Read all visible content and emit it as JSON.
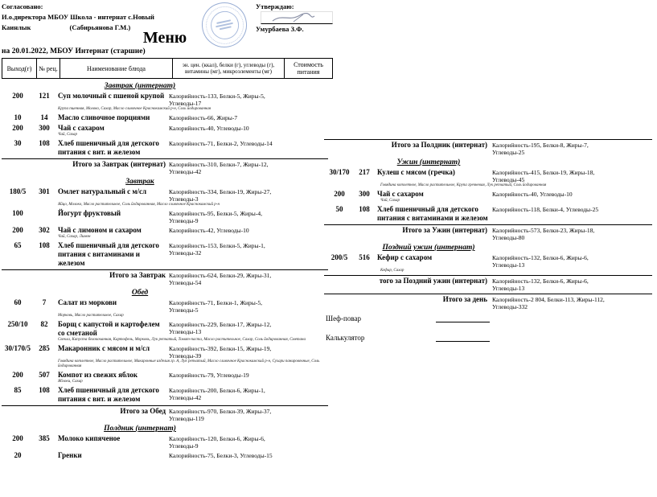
{
  "header": {
    "agreed": {
      "line1": "Согласовано:",
      "line2": "И.о.директора МБОУ Школа - интернат с.Новый",
      "line3a": "Каинлык",
      "line3b": "(Сабирьянова Г.М.)"
    },
    "approved": {
      "label": "Утверждаю:",
      "name": "Умурбаева З.Ф."
    },
    "title": "Меню",
    "subtitle": "на 20.01.2022, МБОУ Интернат (старшие)"
  },
  "colors": {
    "stamp_blue": "#708ec4",
    "ink": "#000000"
  },
  "table_header": {
    "out": "Выход(г)",
    "rec": "№ рец.",
    "name": "Наименование блюда",
    "nutrition": "эн. цен. (ккал), белки (г), углеводы (г), витамины (мг), микроэлементы (мг)",
    "cost": "Стоимость питания"
  },
  "left_column": {
    "sections": [
      {
        "heading": "Завтрак (интернат)",
        "rows": [
          {
            "out": "200",
            "rec": "121",
            "name": "Суп молочный с пшеной крупой",
            "nutrition": "Калорийность-133, Белки-5, Жиры-5, Углеводы-17",
            "ingredients": "Крупа пшенная, Молоко, Сахар, Масло сливочное Краснокамский р-н, Соль йодированная"
          },
          {
            "out": "10",
            "rec": "14",
            "name": "Масло сливочное порциями",
            "nutrition": "Калорийность-66, Жиры-7"
          },
          {
            "out": "200",
            "rec": "300",
            "name": "Чай с сахаром",
            "nutrition": "Калорийность-40, Углеводы-10",
            "ingredients": "Чай, Сахар"
          },
          {
            "out": "30",
            "rec": "108",
            "name": "Хлеб пшеничный для детского питания с вит. и железом",
            "nutrition": "Калорийность-71, Белки-2, Углеводы-14"
          }
        ],
        "total": {
          "label": "Итого за Завтрак (интернат)",
          "nutrition": "Калорийность-310, Белки-7, Жиры-12, Углеводы-42"
        }
      },
      {
        "heading": "Завтрак",
        "rows": [
          {
            "out": "180/5",
            "rec": "301",
            "name": "Омлет натуральный с м/сл",
            "nutrition": "Калорийность-334, Белки-19, Жиры-27, Углеводы-3",
            "ingredients": "Яйцо, Молоко, Масло растительное, Соль йодированная, Масло сливочное Краснокамский р-н"
          },
          {
            "out": "100",
            "rec": "",
            "name": "Йогурт фруктовый",
            "nutrition": "Калорийность-95, Белки-5, Жиры-4, Углеводы-9"
          },
          {
            "out": "200",
            "rec": "302",
            "name": "Чай с лимоном и сахаром",
            "nutrition": "Калорийность-42, Углеводы-10",
            "ingredients": "Чай, Сахар, Лимон"
          },
          {
            "out": "65",
            "rec": "108",
            "name": "Хлеб пшеничный для детского питания с витаминами и железом",
            "nutrition": "Калорийность-153, Белки-5, Жиры-1, Углеводы-32"
          }
        ],
        "total": {
          "label": "Итого за Завтрак",
          "nutrition": "Калорийность-624, Белки-29, Жиры-31, Углеводы-54"
        }
      },
      {
        "heading": "Обед",
        "rows": [
          {
            "out": "60",
            "rec": "7",
            "name": "Салат из моркови",
            "nutrition": "Калорийность-71, Белки-1, Жиры-5, Углеводы-5",
            "ingredients": "Морковь, Масло растительное, Сахар"
          },
          {
            "out": "250/10",
            "rec": "82",
            "name": "Борщ с капустой и картофелем со сметаной",
            "nutrition": "Калорийность-229, Белки-17, Жиры-12, Углеводы-13",
            "ingredients": "Свекла, Капуста белокочанная, Картофель, Морковь, Лук репчатый, Томат-паста, Масло растительное, Сахар, Соль йодированная, Сметана"
          },
          {
            "out": "30/170/5",
            "rec": "285",
            "name": "Макаронник с мясом и м/сл",
            "nutrition": "Калорийность-392, Белки-15, Жиры-19, Углеводы-39",
            "ingredients": "Говядина котлетное, Масло растительное, Макаронные изделия гр. А, Лук репчатый, Масло сливочное Краснокамский р-н, Сухари панировочные, Соль йодированная"
          },
          {
            "out": "200",
            "rec": "507",
            "name": "Компот из свежих яблок",
            "nutrition": "Калорийность-79, Углеводы-19",
            "ingredients": "Яблоки, Сахар"
          },
          {
            "out": "85",
            "rec": "108",
            "name": "Хлеб пшеничный для детского питания с вит. и железом",
            "nutrition": "Калорийность-200, Белки-6, Жиры-1, Углеводы-42"
          }
        ],
        "total": {
          "label": "Итого за Обед",
          "nutrition": "Калорийность-970, Белки-39, Жиры-37, Углеводы-119"
        }
      },
      {
        "heading": "Полдник (интернат)",
        "rows": [
          {
            "out": "200",
            "rec": "385",
            "name": "Молоко кипяченое",
            "nutrition": "Калорийность-120, Белки-6, Жиры-6, Углеводы-9"
          },
          {
            "out": "20",
            "rec": "",
            "name": "Гренки",
            "nutrition": "Калорийность-75, Белки-3, Углеводы-15"
          }
        ]
      }
    ]
  },
  "right_column": {
    "lead_total": {
      "label": "Итого за Полдник (интернат)",
      "nutrition": "Калорийность-195, Белки-8, Жиры-7, Углеводы-25"
    },
    "sections": [
      {
        "heading": "Ужин (интернат)",
        "rows": [
          {
            "out": "30/170",
            "rec": "217",
            "name": "Кулеш с мясом (гречка)",
            "nutrition": "Калорийность-415, Белки-19, Жиры-18, Углеводы-45",
            "ingredients": "Говядина котлетное, Масло растительное, Крупа гречневая, Лук репчатый, Соль йодированная"
          },
          {
            "out": "200",
            "rec": "300",
            "name": "Чай с сахаром",
            "nutrition": "Калорийность-40, Углеводы-10",
            "ingredients": "Чай, Сахар"
          },
          {
            "out": "50",
            "rec": "108",
            "name": "Хлеб пшеничный для детского питания с витаминами и железом",
            "nutrition": "Калорийность-118, Белки-4, Углеводы-25"
          }
        ],
        "total": {
          "label": "Итого за Ужин (интернат)",
          "nutrition": "Калорийность-573, Белки-23, Жиры-18, Углеводы-80"
        }
      },
      {
        "heading": "Поздний ужин (интернат)",
        "rows": [
          {
            "out": "200/5",
            "rec": "516",
            "name": "Кефир с сахаром",
            "nutrition": "Калорийность-132, Белки-6, Жиры-6, Углеводы-13",
            "ingredients": "Кефир, Сахар"
          }
        ],
        "total": {
          "label": "того за Поздний ужин (интернат)",
          "nutrition": "Калорийность-132, Белки-6, Жиры-6, Углеводы-13"
        }
      }
    ],
    "day_total": {
      "label": "Итого за день",
      "nutrition": "Калорийность-2 804, Белки-113, Жиры-112, Углеводы-332"
    }
  },
  "signatures": {
    "chef_label": "Шеф-повар",
    "calc_label": "Калькулятор"
  }
}
